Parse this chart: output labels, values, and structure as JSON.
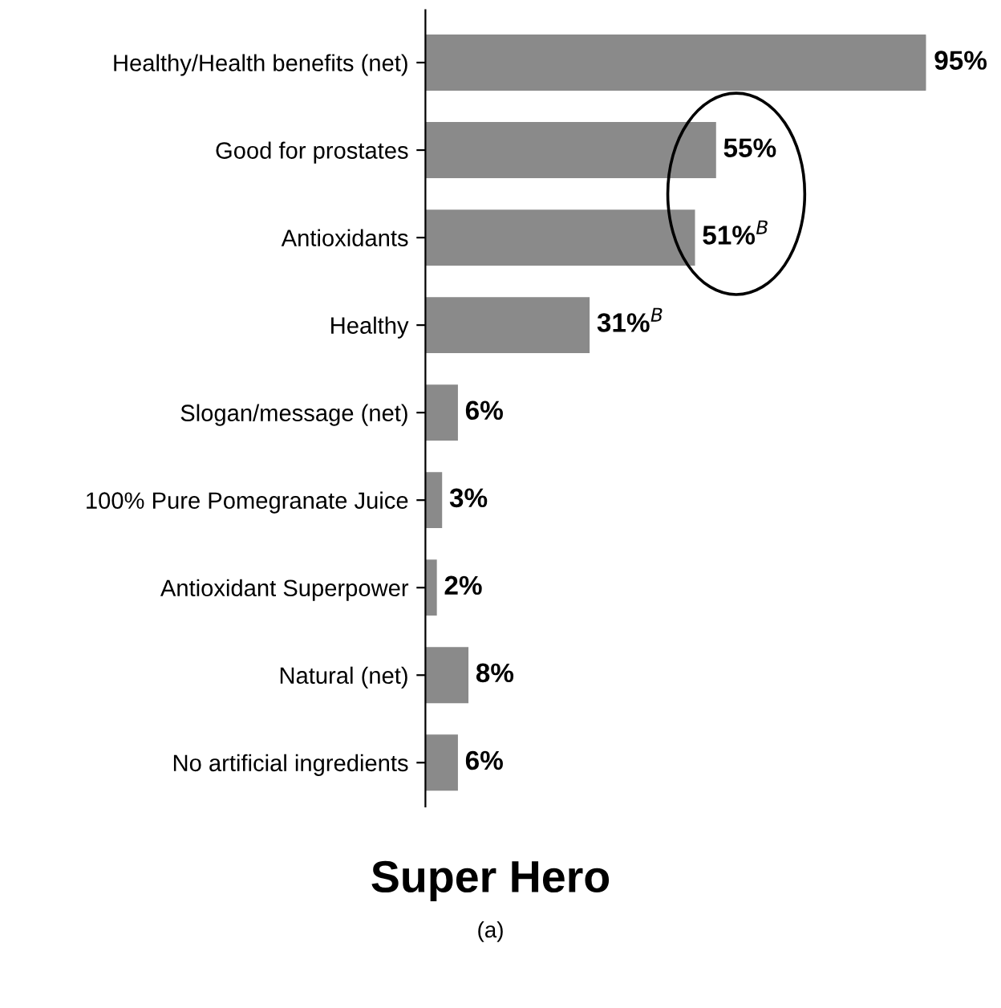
{
  "chart_data": {
    "type": "bar",
    "orientation": "horizontal",
    "title": "Super Hero",
    "subtitle": "(a)",
    "categories": [
      "Healthy/Health benefits (net)",
      "Good for prostates",
      "Antioxidants",
      "Healthy",
      "Slogan/message (net)",
      "100% Pure Pomegranate Juice",
      "Antioxidant Superpower",
      "Natural (net)",
      "No artificial ingredients"
    ],
    "values": [
      95,
      55,
      51,
      31,
      6,
      3,
      2,
      8,
      6
    ],
    "value_labels": [
      "95%",
      "55%",
      "51%$^{B}$",
      "31%$^{B}$",
      "6%",
      "3%",
      "2%",
      "8%",
      "6%"
    ],
    "color": "#8a8a8a",
    "grid": false,
    "legend": false
  }
}
